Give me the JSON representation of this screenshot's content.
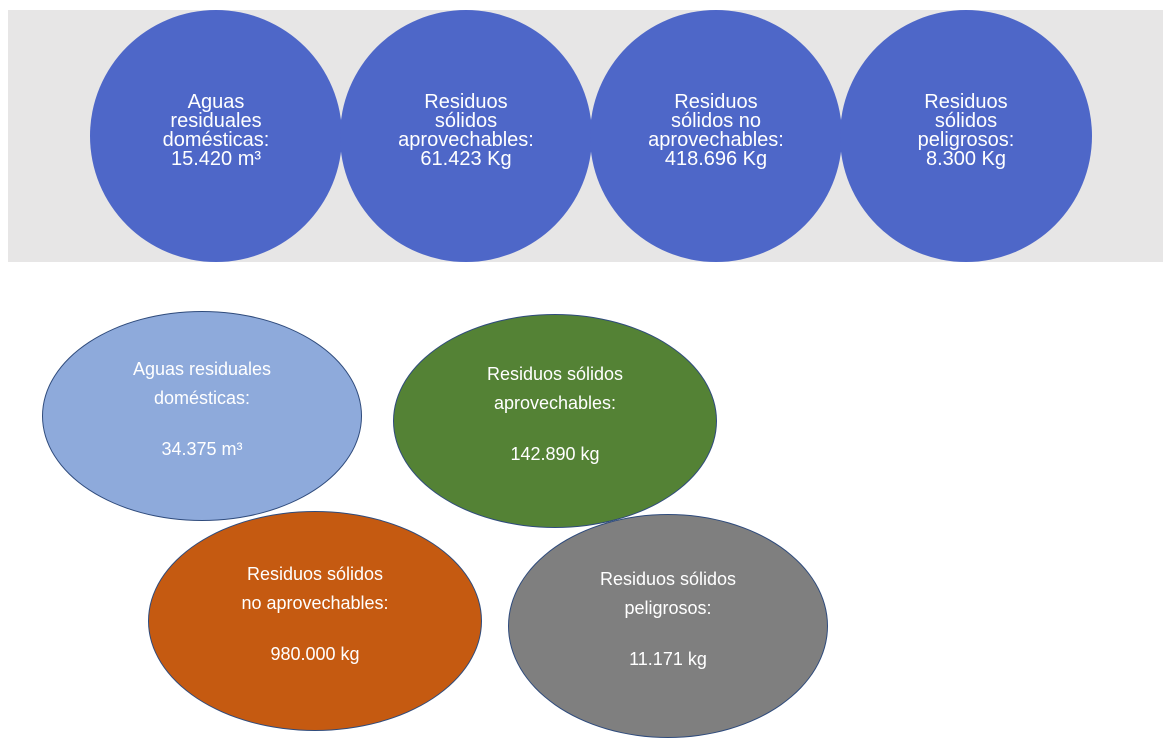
{
  "top_row": [
    {
      "lines": [
        "Aguas",
        "residuales",
        "domésticas:",
        "15.420 m³"
      ]
    },
    {
      "lines": [
        "Residuos",
        "sólidos",
        "aprovechables:",
        "61.423 Kg"
      ]
    },
    {
      "lines": [
        "Residuos",
        "sólidos no",
        "aprovechables:",
        "418.696 Kg"
      ]
    },
    {
      "lines": [
        "Residuos",
        "sólidos",
        "peligrosos:",
        "8.300 Kg"
      ]
    }
  ],
  "bottom_group": [
    {
      "lines": [
        "Aguas residuales",
        "domésticas:"
      ],
      "value": "34.375 m³"
    },
    {
      "lines": [
        "Residuos sólidos",
        "aprovechables:"
      ],
      "value": "142.890 kg"
    },
    {
      "lines": [
        "Residuos sólidos",
        "no aprovechables:"
      ],
      "value": "980.000 kg"
    },
    {
      "lines": [
        "Residuos sólidos",
        "peligrosos:"
      ],
      "value": "11.171 kg"
    }
  ]
}
